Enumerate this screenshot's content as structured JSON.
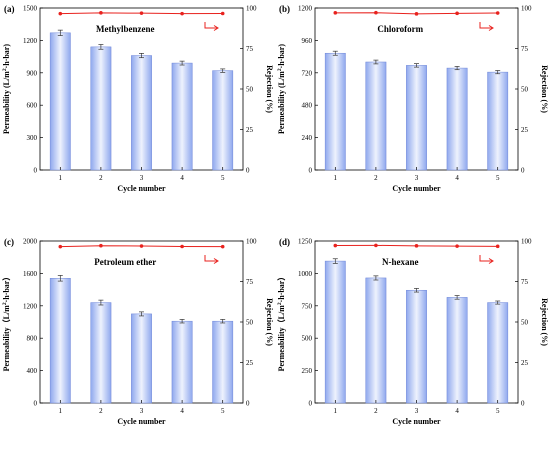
{
  "figure": {
    "colors": {
      "bar_fill_light": "#eef2fd",
      "bar_fill_dark": "#8fa8ee",
      "bar_stroke": "#6e86d8",
      "rejection_line": "#e8221e",
      "axis": "#000000"
    }
  },
  "chart_data": [
    {
      "panel_label": "(a)",
      "type": "bar",
      "title": "Methylbenzene",
      "xlabel": "Cycle number",
      "ylabel_pre": "Permeability (L/m",
      "ylabel_sup": "2",
      "ylabel_post": "·h·bar)",
      "y2label": "Rejection (%)",
      "categories": [
        "1",
        "2",
        "3",
        "4",
        "5"
      ],
      "ylim": [
        0,
        1500
      ],
      "yticks": [
        "0",
        "300",
        "600",
        "900",
        "1200",
        "1500"
      ],
      "y2lim": [
        0,
        100
      ],
      "y2ticks": [
        "0",
        "25",
        "50",
        "75",
        "100"
      ],
      "series": [
        {
          "kind": "bar",
          "values": [
            1270,
            1140,
            1060,
            990,
            920
          ],
          "errors": [
            25,
            22,
            20,
            18,
            16
          ]
        },
        {
          "kind": "line",
          "axis": "right",
          "values": [
            96.5,
            97.0,
            96.8,
            96.5,
            96.6
          ],
          "errors": [
            0.6,
            0.6,
            0.6,
            0.6,
            0.6
          ]
        }
      ],
      "legend": "top-right",
      "grid": false
    },
    {
      "panel_label": "(b)",
      "type": "bar",
      "title": "Chloroform",
      "xlabel": "Cycle number",
      "ylabel_pre": "Permeability (L/m",
      "ylabel_sup": "2",
      "ylabel_post": "·h·bar)",
      "y2label": "Rejection (%)",
      "categories": [
        "1",
        "2",
        "3",
        "4",
        "5"
      ],
      "ylim": [
        0,
        1200
      ],
      "yticks": [
        "0",
        "240",
        "480",
        "720",
        "960",
        "1200"
      ],
      "y2lim": [
        0,
        100
      ],
      "y2ticks": [
        "0",
        "25",
        "50",
        "75",
        "100"
      ],
      "series": [
        {
          "kind": "bar",
          "values": [
            865,
            800,
            775,
            755,
            725
          ],
          "errors": [
            15,
            14,
            13,
            12,
            12
          ]
        },
        {
          "kind": "line",
          "axis": "right",
          "values": [
            97.0,
            97.1,
            96.4,
            96.7,
            96.9
          ],
          "errors": [
            0.6,
            0.6,
            0.6,
            0.6,
            0.6
          ]
        }
      ],
      "legend": "top-right",
      "grid": false
    },
    {
      "panel_label": "(c)",
      "type": "bar",
      "title": "Petroleum ether",
      "xlabel": "Cycle number",
      "ylabel_pre": "Permeability（L/m",
      "ylabel_sup": "2",
      "ylabel_post": "·h·bar）",
      "y2label": "Rejection (%)",
      "categories": [
        "1",
        "2",
        "3",
        "4",
        "5"
      ],
      "ylim": [
        0,
        2000
      ],
      "yticks": [
        "0",
        "400",
        "800",
        "1200",
        "1600",
        "2000"
      ],
      "y2lim": [
        0,
        100
      ],
      "y2ticks": [
        "0",
        "25",
        "50",
        "75",
        "100"
      ],
      "series": [
        {
          "kind": "bar",
          "values": [
            1540,
            1240,
            1100,
            1010,
            1010
          ],
          "errors": [
            35,
            30,
            25,
            22,
            22
          ]
        },
        {
          "kind": "line",
          "axis": "right",
          "values": [
            96.5,
            97.1,
            96.9,
            96.6,
            96.5
          ],
          "errors": [
            0.8,
            0.8,
            0.8,
            0.8,
            0.8
          ]
        }
      ],
      "legend": "top-right",
      "grid": false
    },
    {
      "panel_label": "(d)",
      "type": "bar",
      "title": "N-hexane",
      "xlabel": "Cycle number",
      "ylabel_pre": "Permeability（L/m",
      "ylabel_sup": "2",
      "ylabel_post": "·h·bar）",
      "y2label": "Rejection (%)",
      "categories": [
        "1",
        "2",
        "3",
        "4",
        "5"
      ],
      "ylim": [
        0,
        1250
      ],
      "yticks": [
        "0",
        "250",
        "500",
        "750",
        "1000",
        "1250"
      ],
      "y2lim": [
        0,
        100
      ],
      "y2ticks": [
        "0",
        "25",
        "50",
        "75",
        "100"
      ],
      "series": [
        {
          "kind": "bar",
          "values": [
            1095,
            965,
            870,
            815,
            775
          ],
          "errors": [
            18,
            16,
            14,
            14,
            12
          ]
        },
        {
          "kind": "line",
          "axis": "right",
          "values": [
            97.2,
            97.3,
            97.0,
            96.8,
            96.7
          ],
          "errors": [
            0.6,
            0.6,
            0.6,
            0.6,
            0.6
          ]
        }
      ],
      "legend": "top-right",
      "grid": false
    }
  ]
}
